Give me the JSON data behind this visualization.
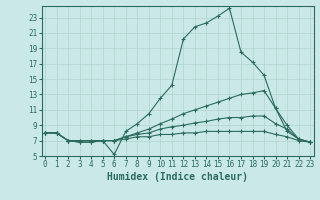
{
  "bg_color": "#cbe8e8",
  "line_color": "#2a6b5e",
  "grid_color": "#b0d4cc",
  "xlabel": "Humidex (Indice chaleur)",
  "xlabel_fontsize": 7,
  "ytick_labels": [
    "5",
    "7",
    "9",
    "11",
    "13",
    "15",
    "17",
    "19",
    "21",
    "23"
  ],
  "ytick_vals": [
    5,
    7,
    9,
    11,
    13,
    15,
    17,
    19,
    21,
    23
  ],
  "xtick_vals": [
    0,
    1,
    2,
    3,
    4,
    5,
    6,
    7,
    8,
    9,
    10,
    11,
    12,
    13,
    14,
    15,
    16,
    17,
    18,
    19,
    20,
    21,
    22,
    23
  ],
  "xlim": [
    -0.3,
    23.3
  ],
  "ylim": [
    5,
    24.5
  ],
  "line1_x": [
    0,
    1,
    2,
    3,
    4,
    5,
    6,
    7,
    8,
    9,
    10,
    11,
    12,
    13,
    14,
    15,
    16,
    17,
    18,
    19,
    20,
    21,
    22,
    23
  ],
  "line1_y": [
    8,
    8,
    7,
    7,
    7,
    7,
    5.2,
    8.2,
    9.2,
    10.5,
    12.5,
    14.2,
    20.2,
    21.8,
    22.3,
    23.2,
    24.2,
    18.5,
    17.2,
    15.5,
    11.2,
    8.2,
    7.2,
    6.8
  ],
  "line2_x": [
    0,
    1,
    2,
    3,
    4,
    5,
    6,
    7,
    8,
    9,
    10,
    11,
    12,
    13,
    14,
    15,
    16,
    17,
    18,
    19,
    20,
    21,
    22,
    23
  ],
  "line2_y": [
    8,
    8,
    7,
    6.8,
    6.8,
    7,
    7,
    7.5,
    8.0,
    8.5,
    9.2,
    9.8,
    10.5,
    11.0,
    11.5,
    12.0,
    12.5,
    13.0,
    13.2,
    13.5,
    11.2,
    9.0,
    7.2,
    6.8
  ],
  "line3_x": [
    0,
    1,
    2,
    3,
    4,
    5,
    6,
    7,
    8,
    9,
    10,
    11,
    12,
    13,
    14,
    15,
    16,
    17,
    18,
    19,
    20,
    21,
    22,
    23
  ],
  "line3_y": [
    8,
    8,
    7,
    6.8,
    6.8,
    7,
    7,
    7.5,
    7.8,
    8.0,
    8.5,
    8.8,
    9.0,
    9.3,
    9.5,
    9.8,
    10.0,
    10.0,
    10.2,
    10.2,
    9.2,
    8.5,
    7.2,
    6.8
  ],
  "line4_x": [
    0,
    1,
    2,
    3,
    4,
    5,
    6,
    7,
    8,
    9,
    10,
    11,
    12,
    13,
    14,
    15,
    16,
    17,
    18,
    19,
    20,
    21,
    22,
    23
  ],
  "line4_y": [
    8,
    8,
    7,
    7,
    7,
    7,
    7,
    7.2,
    7.5,
    7.5,
    7.8,
    7.8,
    8.0,
    8.0,
    8.2,
    8.2,
    8.2,
    8.2,
    8.2,
    8.2,
    7.8,
    7.5,
    7.0,
    6.8
  ]
}
